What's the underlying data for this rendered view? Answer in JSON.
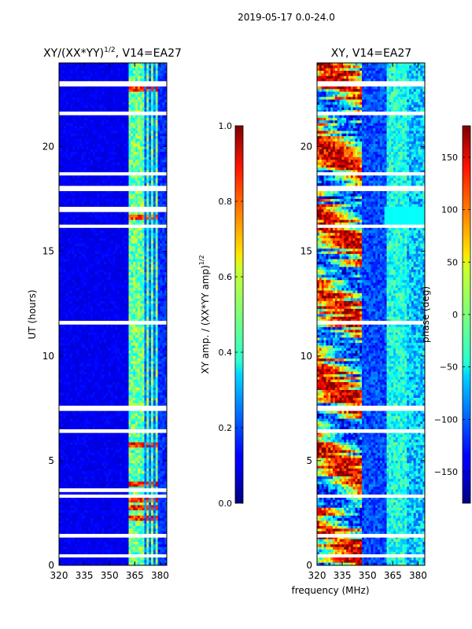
{
  "figure": {
    "suptitle": "2019-05-17 0.0-24.0",
    "xlabel": "frequency (MHz)"
  },
  "chart_data": [
    {
      "type": "heatmap",
      "title_main": "XY/(XX*YY)",
      "title_sup": "1/2",
      "title_tail": ", V14=EA27",
      "xlabel": "",
      "ylabel": "UT (hours)",
      "xlim": [
        320,
        384
      ],
      "ylim": [
        0,
        24
      ],
      "xticks": [
        "320",
        "335",
        "350",
        "365",
        "380"
      ],
      "xtick_values": [
        320,
        335,
        350,
        365,
        380
      ],
      "yticks": [
        "0",
        "5",
        "10",
        "15",
        "20"
      ],
      "ytick_values": [
        0,
        5,
        10,
        15,
        20
      ],
      "colorbar": {
        "label_main": "XY amp. / (XX*YY amp)",
        "label_sup": "1/2",
        "range": [
          0.0,
          1.0
        ],
        "ticks": [
          "0.0",
          "0.2",
          "0.4",
          "0.6",
          "0.8",
          "1.0"
        ],
        "tick_values": [
          0.0,
          0.2,
          0.4,
          0.6,
          0.8,
          1.0
        ],
        "colormap": "jet"
      },
      "bright_channels_mhz": [
        362,
        364,
        366,
        368,
        370,
        373,
        375,
        378
      ],
      "flagged_ut_hours": [
        0.45,
        1.4,
        3.3,
        3.6,
        6.4,
        7.5,
        11.6,
        16.2,
        17.0,
        18.0,
        18.7,
        21.6,
        23.0
      ],
      "hot_ut_hours": [
        2.2,
        2.7,
        3.1,
        3.9,
        5.8,
        16.6,
        22.8
      ]
    },
    {
      "type": "heatmap",
      "title": "XY, V14=EA27",
      "xlabel": "",
      "ylabel": "",
      "xlim": [
        320,
        384
      ],
      "ylim": [
        0,
        24
      ],
      "xticks": [
        "320",
        "335",
        "350",
        "365",
        "380"
      ],
      "xtick_values": [
        320,
        335,
        350,
        365,
        380
      ],
      "yticks": [
        "0",
        "5",
        "10",
        "15",
        "20"
      ],
      "ytick_values": [
        0,
        5,
        10,
        15,
        20
      ],
      "colorbar": {
        "label": "phase (deg)",
        "range": [
          -180,
          180
        ],
        "ticks": [
          "−150",
          "−100",
          "−50",
          "0",
          "50",
          "100",
          "150"
        ],
        "tick_values": [
          -150,
          -100,
          -50,
          0,
          50,
          100,
          150
        ],
        "colormap": "jet"
      },
      "flagged_ut_hours": [
        0.45,
        1.4,
        3.3,
        6.4,
        7.5,
        11.6,
        16.2,
        18.0,
        18.7,
        21.6,
        23.0
      ]
    }
  ]
}
